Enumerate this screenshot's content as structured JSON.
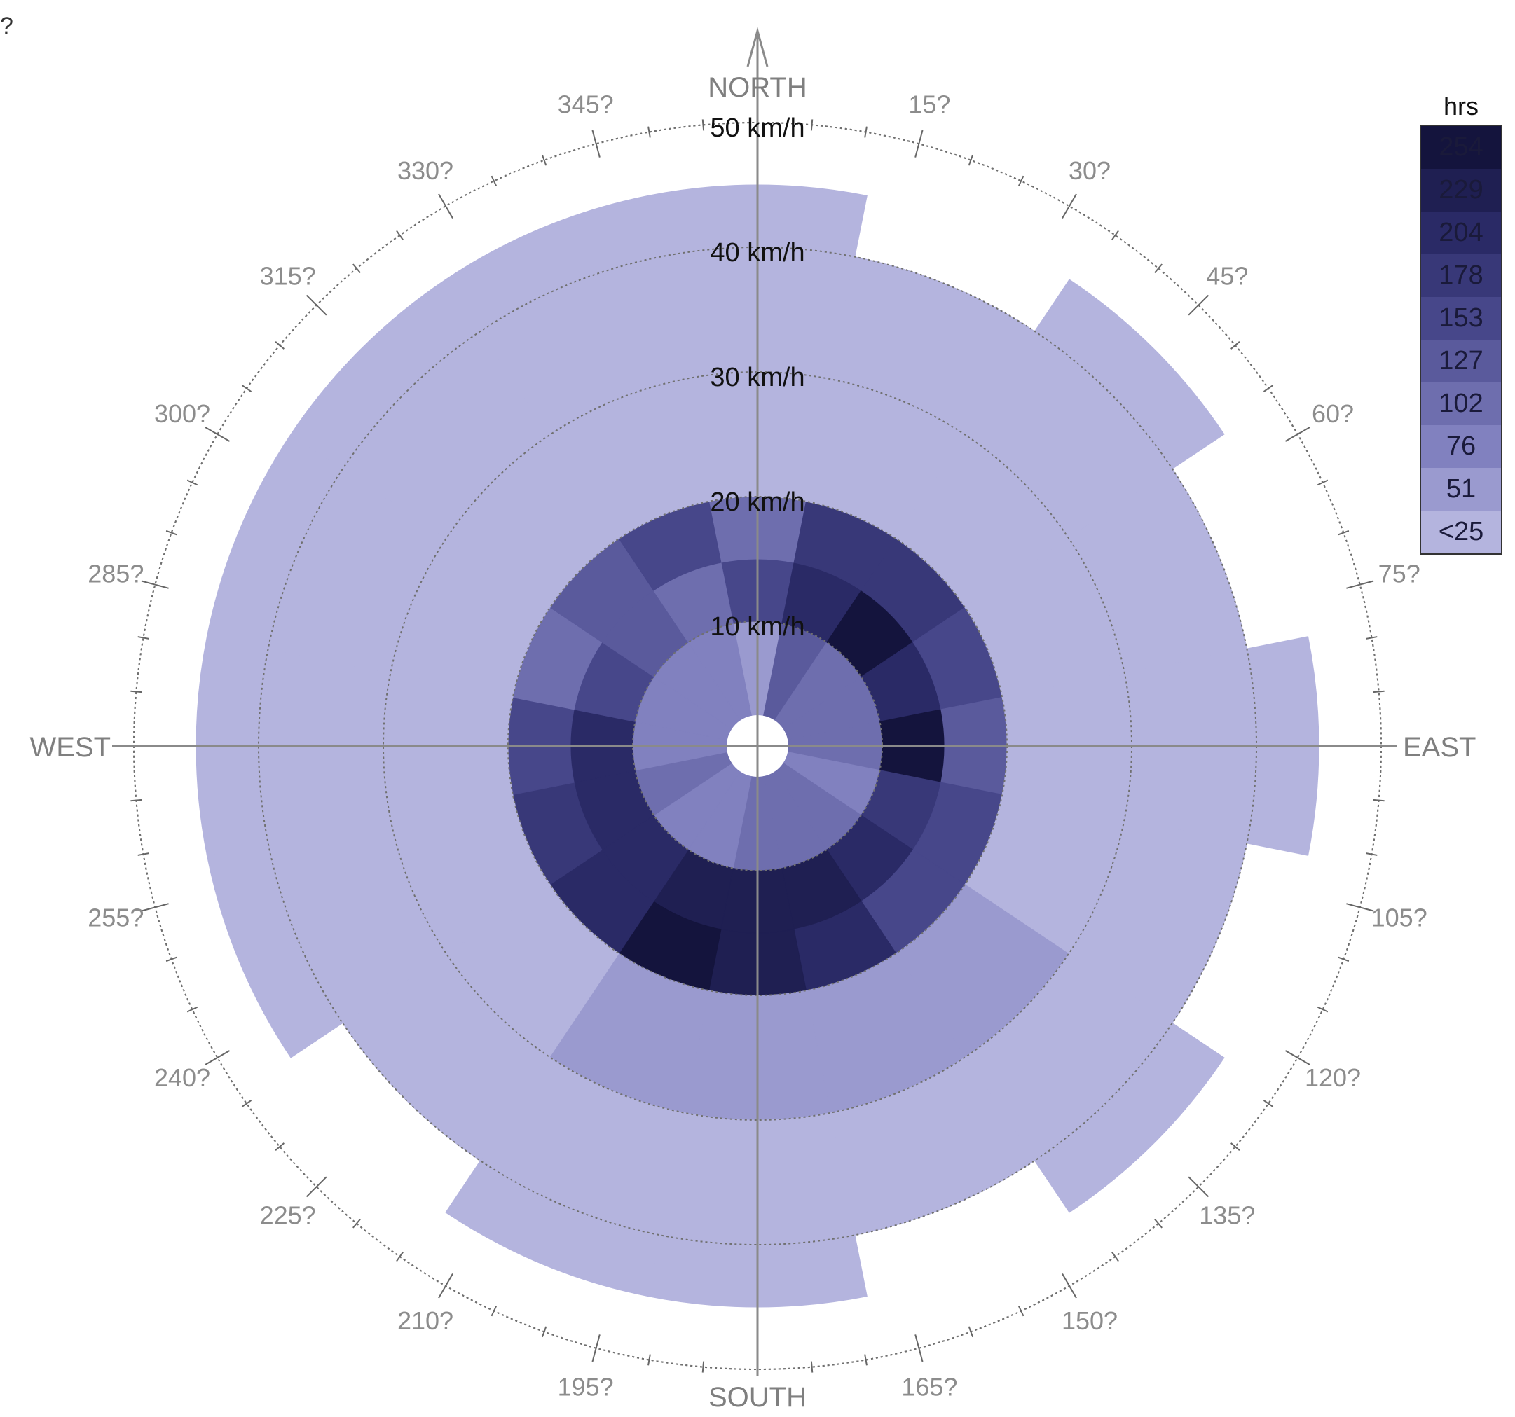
{
  "corner_mark": "?",
  "legend": {
    "title": "hrs",
    "items": [
      {
        "label": "254",
        "color": "#14143d"
      },
      {
        "label": "229",
        "color": "#1f1f52"
      },
      {
        "label": "204",
        "color": "#2a2a66"
      },
      {
        "label": "178",
        "color": "#383878"
      },
      {
        "label": "153",
        "color": "#47478a"
      },
      {
        "label": "127",
        "color": "#5a5a9c"
      },
      {
        "label": "102",
        "color": "#6e6eae"
      },
      {
        "label": "76",
        "color": "#8181bf"
      },
      {
        "label": "51",
        "color": "#9a9acf"
      },
      {
        "label": "<25",
        "color": "#b4b4de"
      }
    ]
  },
  "compass": {
    "north": "NORTH",
    "south": "SOUTH",
    "east": "EAST",
    "west": "WEST",
    "degree_labels": [
      "15?",
      "30?",
      "45?",
      "60?",
      "75?",
      "105?",
      "120?",
      "135?",
      "150?",
      "165?",
      "195?",
      "210?",
      "225?",
      "240?",
      "255?",
      "285?",
      "300?",
      "315?",
      "330?",
      "345?"
    ],
    "degree_values": [
      15,
      30,
      45,
      60,
      75,
      105,
      120,
      135,
      150,
      165,
      195,
      210,
      225,
      240,
      255,
      285,
      300,
      315,
      330,
      345
    ]
  },
  "speed_rings": [
    "10 km/h",
    "20 km/h",
    "30 km/h",
    "40 km/h",
    "50 km/h"
  ],
  "chart_data": {
    "type": "heatmap",
    "subtype": "polar wind rose (hours by direction and speed)",
    "title": "",
    "color_unit": "hrs",
    "direction_unit": "degrees",
    "speed_unit": "km/h",
    "speed_range": [
      0,
      50
    ],
    "direction_sector_width_deg": 22.5,
    "directions_deg": [
      0,
      22.5,
      45,
      67.5,
      90,
      112.5,
      135,
      157.5,
      180,
      202.5,
      225,
      247.5,
      270,
      292.5,
      315,
      337.5
    ],
    "speed_bins": [
      {
        "min": 2.5,
        "max": 10
      },
      {
        "min": 10,
        "max": 15
      },
      {
        "min": 15,
        "max": 20
      },
      {
        "min": 20,
        "max": 30
      },
      {
        "min": 30,
        "max": 40
      },
      {
        "min": 40,
        "max": 45
      }
    ],
    "hours": [
      [
        40,
        140,
        90,
        20,
        20,
        20
      ],
      [
        110,
        200,
        160,
        22,
        15,
        0
      ],
      [
        95,
        230,
        170,
        22,
        15,
        15
      ],
      [
        80,
        180,
        140,
        25,
        18,
        0
      ],
      [
        90,
        240,
        120,
        25,
        20,
        12
      ],
      [
        70,
        170,
        150,
        25,
        20,
        0
      ],
      [
        80,
        190,
        150,
        28,
        20,
        12
      ],
      [
        95,
        210,
        200,
        30,
        18,
        0
      ],
      [
        80,
        215,
        220,
        35,
        20,
        15
      ],
      [
        70,
        210,
        230,
        30,
        20,
        15
      ],
      [
        75,
        200,
        200,
        25,
        18,
        0
      ],
      [
        90,
        190,
        160,
        25,
        18,
        12
      ],
      [
        75,
        190,
        150,
        22,
        18,
        12
      ],
      [
        70,
        140,
        80,
        20,
        15,
        15
      ],
      [
        70,
        120,
        120,
        20,
        15,
        15
      ],
      [
        70,
        80,
        130,
        20,
        15,
        15
      ]
    ],
    "legend_bins": [
      "<25",
      "51",
      "76",
      "102",
      "127",
      "153",
      "178",
      "204",
      "229",
      "254"
    ],
    "legend_placement": "top-right"
  }
}
